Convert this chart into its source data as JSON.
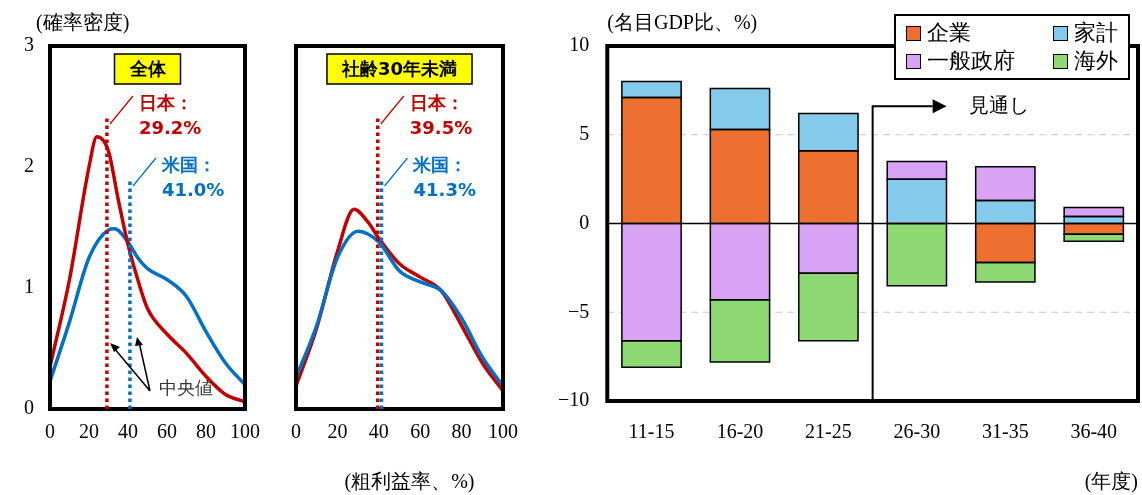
{
  "chart_data": [
    {
      "type": "line",
      "title": "全体",
      "ylabel": "(確率密度)",
      "x": [
        0,
        10,
        20,
        24,
        30,
        35,
        40,
        45,
        50,
        60,
        70,
        80,
        90,
        100
      ],
      "xlim": [
        0,
        100
      ],
      "xticks": [
        0,
        20,
        40,
        60,
        80,
        100
      ],
      "ylim": [
        0,
        3
      ],
      "yticks": [
        0,
        1,
        2,
        3
      ],
      "series": [
        {
          "color": "#c00000",
          "values": [
            0.35,
            1.07,
            2.0,
            2.25,
            2.13,
            1.73,
            1.36,
            1.07,
            0.83,
            0.62,
            0.46,
            0.27,
            0.12,
            0.06
          ]
        },
        {
          "color": "#0070c0",
          "x": [
            0,
            10,
            20,
            30,
            33,
            40,
            45,
            50,
            60,
            70,
            80,
            90,
            100
          ],
          "values": [
            0.23,
            0.72,
            1.25,
            1.48,
            1.49,
            1.38,
            1.25,
            1.16,
            1.07,
            0.93,
            0.64,
            0.38,
            0.2
          ]
        }
      ],
      "ref_lines": [
        {
          "axis": "x",
          "value": 29.2,
          "label": "日本：\n29.2%",
          "color": "#c00000",
          "line_style": "dotted"
        },
        {
          "axis": "x",
          "value": 41.0,
          "label": "米国：\n41.0%",
          "color": "#0070c0",
          "line_style": "dotted"
        }
      ],
      "annotations": [
        "中央値"
      ]
    },
    {
      "type": "line",
      "title": "社齢30年未満",
      "xlabel": "(粗利益率、%)",
      "tick_labels": "x",
      "x": [
        0,
        10,
        20,
        28,
        35,
        40,
        50,
        60,
        70,
        80,
        90,
        100
      ],
      "xlim": [
        0,
        100
      ],
      "xticks": [
        0,
        20,
        40,
        60,
        80,
        100
      ],
      "ylim": [
        0,
        3
      ],
      "yticks": [
        0,
        1,
        2,
        3
      ],
      "series": [
        {
          "color": "#0070c0",
          "x": [
            0,
            10,
            20,
            30,
            40,
            50,
            60,
            70,
            80,
            90,
            100
          ],
          "values": [
            0.26,
            0.69,
            1.25,
            1.47,
            1.38,
            1.14,
            1.05,
            0.98,
            0.75,
            0.43,
            0.19
          ]
        },
        {
          "color": "#c00000",
          "values": [
            0.19,
            0.67,
            1.3,
            1.65,
            1.54,
            1.41,
            1.2,
            1.09,
            0.98,
            0.69,
            0.38,
            0.15
          ]
        }
      ],
      "ref_lines": [
        {
          "axis": "x",
          "value": 39.5,
          "label": "日本：\n39.5%",
          "color": "#c00000",
          "line_style": "dotted"
        },
        {
          "axis": "x",
          "value": 41.3,
          "label": "米国：\n41.3%",
          "color": "#0070c0",
          "line_style": "dotted"
        }
      ]
    },
    {
      "type": "bar",
      "stacked": true,
      "ylabel": "(名目GDP比、%)",
      "xlabel": "(年度)",
      "categories": [
        "11-15",
        "16-20",
        "21-25",
        "26-30",
        "31-35",
        "36-40"
      ],
      "ylim": [
        -10,
        10
      ],
      "yticks": [
        -10,
        -5,
        0,
        5,
        10
      ],
      "grid": "y",
      "legend": "top right",
      "series": [
        {
          "name": "企業",
          "color": "#ed7031",
          "values": [
            7.1,
            5.3,
            4.1,
            null,
            -2.2,
            -0.6
          ]
        },
        {
          "name": "家計",
          "color": "#84cbeb",
          "values": [
            0.9,
            2.3,
            2.1,
            2.5,
            1.3,
            0.4
          ]
        },
        {
          "name": "一般政府",
          "color": "#d8a3f5",
          "values": [
            -6.6,
            -4.3,
            -2.8,
            1.0,
            1.9,
            0.5
          ]
        },
        {
          "name": "海外",
          "color": "#8fd974",
          "values": [
            -1.5,
            -3.5,
            -3.8,
            -3.5,
            -1.1,
            -0.4
          ]
        }
      ],
      "annotations": [
        "見通し"
      ]
    }
  ]
}
